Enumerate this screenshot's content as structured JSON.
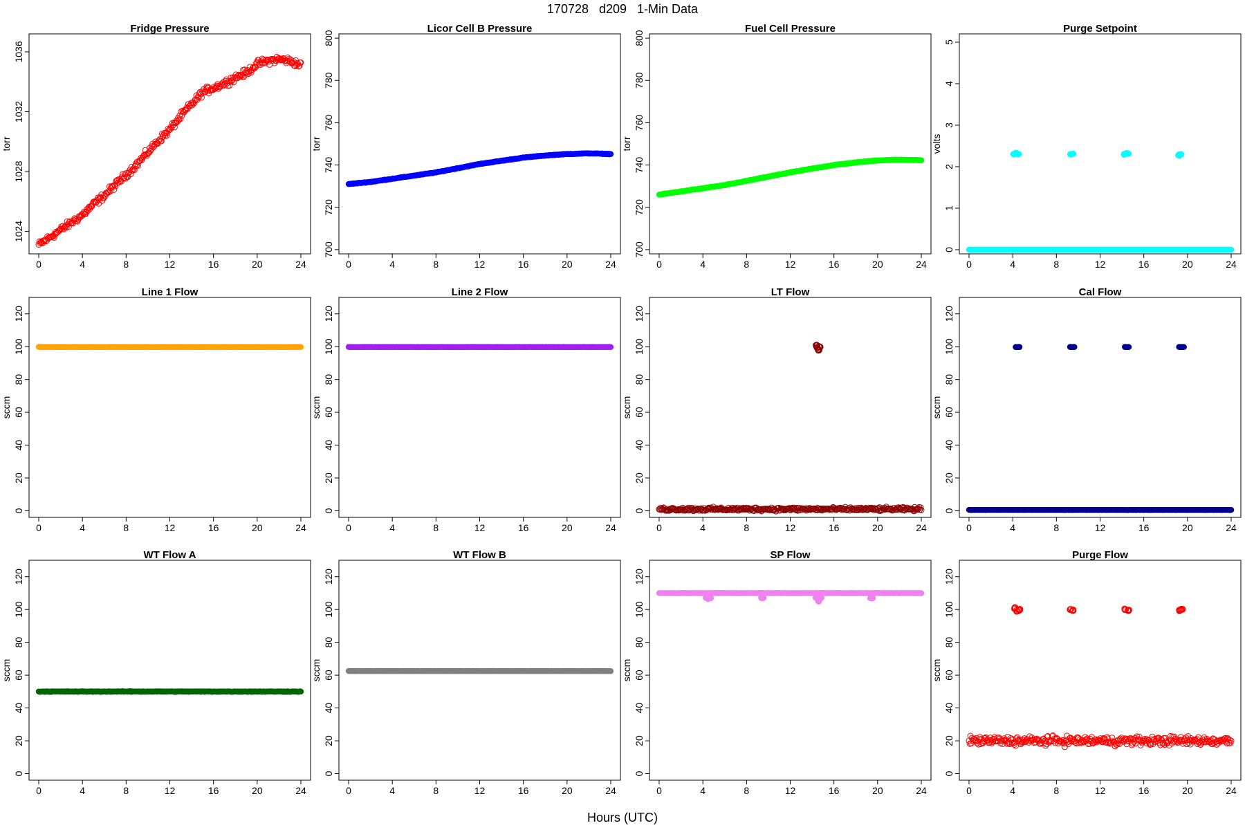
{
  "figure": {
    "title": "170728   d209   1-Min Data",
    "xlabel": "Hours (UTC)"
  },
  "chart_data": [
    {
      "type": "scatter",
      "title": "Fridge Pressure",
      "ylabel": "torr",
      "color": "#ff0000",
      "marker": "open",
      "xlim": [
        0,
        24
      ],
      "ylim": [
        1022.5,
        1037.2
      ],
      "yticks": [
        1024,
        1028,
        1032,
        1036
      ],
      "xticks": [
        0,
        4,
        8,
        12,
        16,
        20,
        24
      ],
      "series": [
        {
          "x": [
            0,
            1,
            2,
            3,
            4,
            5,
            6,
            7,
            8,
            9,
            10,
            11,
            12,
            13,
            14,
            15,
            16,
            17,
            18,
            19,
            20,
            21,
            22,
            23,
            24
          ],
          "y": [
            1023.1,
            1023.6,
            1024.1,
            1024.6,
            1025.1,
            1025.8,
            1026.4,
            1027.1,
            1027.8,
            1028.5,
            1029.3,
            1030.1,
            1030.8,
            1031.7,
            1032.5,
            1033.3,
            1033.6,
            1033.9,
            1034.3,
            1034.6,
            1035.2,
            1035.4,
            1035.5,
            1035.4,
            1035.1
          ],
          "noise": 0.35
        }
      ]
    },
    {
      "type": "scatter",
      "title": "Licor Cell B Pressure",
      "ylabel": "torr",
      "color": "#0000ff",
      "marker": "filled",
      "xlim": [
        0,
        24
      ],
      "ylim": [
        698,
        802
      ],
      "yticks": [
        700,
        720,
        740,
        760,
        780,
        800
      ],
      "xticks": [
        0,
        4,
        8,
        12,
        16,
        20,
        24
      ],
      "series": [
        {
          "x": [
            0,
            2,
            4,
            6,
            8,
            10,
            12,
            14,
            16,
            18,
            20,
            22,
            24
          ],
          "y": [
            731,
            732,
            733.5,
            735,
            736.5,
            738.5,
            740.5,
            742,
            743.5,
            744.5,
            745.2,
            745.5,
            745.2
          ],
          "noise": 0.2
        }
      ]
    },
    {
      "type": "scatter",
      "title": "Fuel Cell Pressure",
      "ylabel": "torr",
      "color": "#00ff00",
      "marker": "filled",
      "xlim": [
        0,
        24
      ],
      "ylim": [
        698,
        802
      ],
      "yticks": [
        700,
        720,
        740,
        760,
        780,
        800
      ],
      "xticks": [
        0,
        4,
        8,
        12,
        16,
        20,
        24
      ],
      "series": [
        {
          "x": [
            0,
            2,
            4,
            6,
            8,
            10,
            12,
            14,
            16,
            18,
            20,
            22,
            24
          ],
          "y": [
            726,
            727.5,
            729,
            730.5,
            732.5,
            734.5,
            736.5,
            738.3,
            740,
            741.2,
            742.2,
            742.5,
            742.3
          ],
          "noise": 0.2
        }
      ]
    },
    {
      "type": "scatter",
      "title": "Purge Setpoint",
      "ylabel": "volts",
      "color": "#00ffff",
      "marker": "filled",
      "xlim": [
        0,
        24
      ],
      "ylim": [
        -0.1,
        5.2
      ],
      "yticks": [
        0,
        1,
        2,
        3,
        4,
        5
      ],
      "xticks": [
        0,
        4,
        8,
        12,
        16,
        20,
        24
      ],
      "series": [
        {
          "x": [
            0,
            24
          ],
          "y": [
            0,
            0
          ],
          "noise": 0
        },
        {
          "x": [
            4.1,
            4.3,
            4.5
          ],
          "y": [
            2.3,
            2.33,
            2.31
          ],
          "noise": 0.02,
          "scatter_only": true
        },
        {
          "x": [
            9.3,
            9.5
          ],
          "y": [
            2.3,
            2.31
          ],
          "noise": 0.01,
          "scatter_only": true
        },
        {
          "x": [
            14.2,
            14.4,
            14.6
          ],
          "y": [
            2.3,
            2.33,
            2.31
          ],
          "noise": 0.02,
          "scatter_only": true
        },
        {
          "x": [
            19.2,
            19.4
          ],
          "y": [
            2.28,
            2.3
          ],
          "noise": 0.02,
          "scatter_only": true
        }
      ]
    },
    {
      "type": "scatter",
      "title": "Line 1 Flow",
      "ylabel": "sccm",
      "color": "#ffa500",
      "marker": "filled",
      "xlim": [
        0,
        24
      ],
      "ylim": [
        -4,
        130
      ],
      "yticks": [
        0,
        20,
        40,
        60,
        80,
        100,
        120
      ],
      "xticks": [
        0,
        4,
        8,
        12,
        16,
        20,
        24
      ],
      "series": [
        {
          "x": [
            0,
            24
          ],
          "y": [
            99.8,
            99.8
          ],
          "noise": 0.1
        }
      ]
    },
    {
      "type": "scatter",
      "title": "Line 2 Flow",
      "ylabel": "sccm",
      "color": "#a020f0",
      "marker": "filled",
      "xlim": [
        0,
        24
      ],
      "ylim": [
        -4,
        130
      ],
      "yticks": [
        0,
        20,
        40,
        60,
        80,
        100,
        120
      ],
      "xticks": [
        0,
        4,
        8,
        12,
        16,
        20,
        24
      ],
      "series": [
        {
          "x": [
            0,
            24
          ],
          "y": [
            99.8,
            99.8
          ],
          "noise": 0.1
        }
      ]
    },
    {
      "type": "scatter",
      "title": "LT Flow",
      "ylabel": "sccm",
      "color": "#8b0000",
      "marker": "open",
      "xlim": [
        0,
        24
      ],
      "ylim": [
        -4,
        130
      ],
      "yticks": [
        0,
        20,
        40,
        60,
        80,
        100,
        120
      ],
      "xticks": [
        0,
        4,
        8,
        12,
        16,
        20,
        24
      ],
      "series": [
        {
          "x": [
            0,
            24
          ],
          "y": [
            1,
            1
          ],
          "noise": 1.6
        },
        {
          "x": [
            14.4,
            14.5,
            14.6,
            14.7
          ],
          "y": [
            101,
            99.5,
            98,
            100
          ],
          "noise": 0.6,
          "scatter_only": true
        }
      ]
    },
    {
      "type": "scatter",
      "title": "Cal Flow",
      "ylabel": "sccm",
      "color": "#00008b",
      "marker": "filled",
      "xlim": [
        0,
        24
      ],
      "ylim": [
        -4,
        130
      ],
      "yticks": [
        0,
        20,
        40,
        60,
        80,
        100,
        120
      ],
      "xticks": [
        0,
        4,
        8,
        12,
        16,
        20,
        24
      ],
      "series": [
        {
          "x": [
            0,
            24
          ],
          "y": [
            0.5,
            0.5
          ],
          "noise": 0.1
        },
        {
          "x": [
            4.3,
            4.6
          ],
          "y": [
            99.8,
            99.8
          ],
          "noise": 0.1,
          "scatter_only": true
        },
        {
          "x": [
            9.3,
            9.6
          ],
          "y": [
            99.8,
            99.8
          ],
          "noise": 0.1,
          "scatter_only": true
        },
        {
          "x": [
            14.3,
            14.6
          ],
          "y": [
            99.8,
            99.8
          ],
          "noise": 0.1,
          "scatter_only": true
        },
        {
          "x": [
            19.3,
            19.6
          ],
          "y": [
            99.8,
            99.8
          ],
          "noise": 0.1,
          "scatter_only": true
        }
      ]
    },
    {
      "type": "scatter",
      "title": "WT Flow A",
      "ylabel": "sccm",
      "color": "#006400",
      "marker": "filled",
      "xlim": [
        0,
        24
      ],
      "ylim": [
        -4,
        130
      ],
      "yticks": [
        0,
        20,
        40,
        60,
        80,
        100,
        120
      ],
      "xticks": [
        0,
        4,
        8,
        12,
        16,
        20,
        24
      ],
      "series": [
        {
          "x": [
            0,
            24
          ],
          "y": [
            50,
            50
          ],
          "noise": 0.3
        }
      ]
    },
    {
      "type": "scatter",
      "title": "WT Flow B",
      "ylabel": "sccm",
      "color": "#808080",
      "marker": "filled",
      "xlim": [
        0,
        24
      ],
      "ylim": [
        -4,
        130
      ],
      "yticks": [
        0,
        20,
        40,
        60,
        80,
        100,
        120
      ],
      "xticks": [
        0,
        4,
        8,
        12,
        16,
        20,
        24
      ],
      "series": [
        {
          "x": [
            0,
            24
          ],
          "y": [
            62.5,
            62.5
          ],
          "noise": 0.1
        }
      ]
    },
    {
      "type": "scatter",
      "title": "SP Flow",
      "ylabel": "sccm",
      "color": "#ee82ee",
      "marker": "filled",
      "xlim": [
        0,
        24
      ],
      "ylim": [
        -4,
        130
      ],
      "yticks": [
        0,
        20,
        40,
        60,
        80,
        100,
        120
      ],
      "xticks": [
        0,
        4,
        8,
        12,
        16,
        20,
        24
      ],
      "series": [
        {
          "x": [
            0,
            24
          ],
          "y": [
            110,
            110
          ],
          "noise": 0.1
        },
        {
          "x": [
            4.3,
            4.5,
            4.7
          ],
          "y": [
            107,
            106.5,
            107
          ],
          "noise": 0.3,
          "scatter_only": true
        },
        {
          "x": [
            9.4,
            9.5
          ],
          "y": [
            107,
            107
          ],
          "noise": 0.3,
          "scatter_only": true
        },
        {
          "x": [
            14.4,
            14.6,
            14.8
          ],
          "y": [
            107,
            105,
            107
          ],
          "noise": 0.3,
          "scatter_only": true
        },
        {
          "x": [
            19.4,
            19.5
          ],
          "y": [
            107,
            107
          ],
          "noise": 0.3,
          "scatter_only": true
        }
      ]
    },
    {
      "type": "scatter",
      "title": "Purge Flow",
      "ylabel": "sccm",
      "color": "#ff0000",
      "marker": "open",
      "xlim": [
        0,
        24
      ],
      "ylim": [
        -4,
        130
      ],
      "yticks": [
        0,
        20,
        40,
        60,
        80,
        100,
        120
      ],
      "xticks": [
        0,
        4,
        8,
        12,
        16,
        20,
        24
      ],
      "series": [
        {
          "x": [
            0,
            24
          ],
          "y": [
            20,
            20
          ],
          "noise": 4
        },
        {
          "x": [
            4.2,
            4.4,
            4.6
          ],
          "y": [
            101,
            99,
            100
          ],
          "noise": 0.8,
          "scatter_only": true
        },
        {
          "x": [
            9.3,
            9.5
          ],
          "y": [
            100,
            99.5
          ],
          "noise": 0.6,
          "scatter_only": true
        },
        {
          "x": [
            14.3,
            14.6
          ],
          "y": [
            100,
            99.5
          ],
          "noise": 0.6,
          "scatter_only": true
        },
        {
          "x": [
            19.3,
            19.5
          ],
          "y": [
            99.5,
            100
          ],
          "noise": 0.6,
          "scatter_only": true
        }
      ]
    }
  ]
}
